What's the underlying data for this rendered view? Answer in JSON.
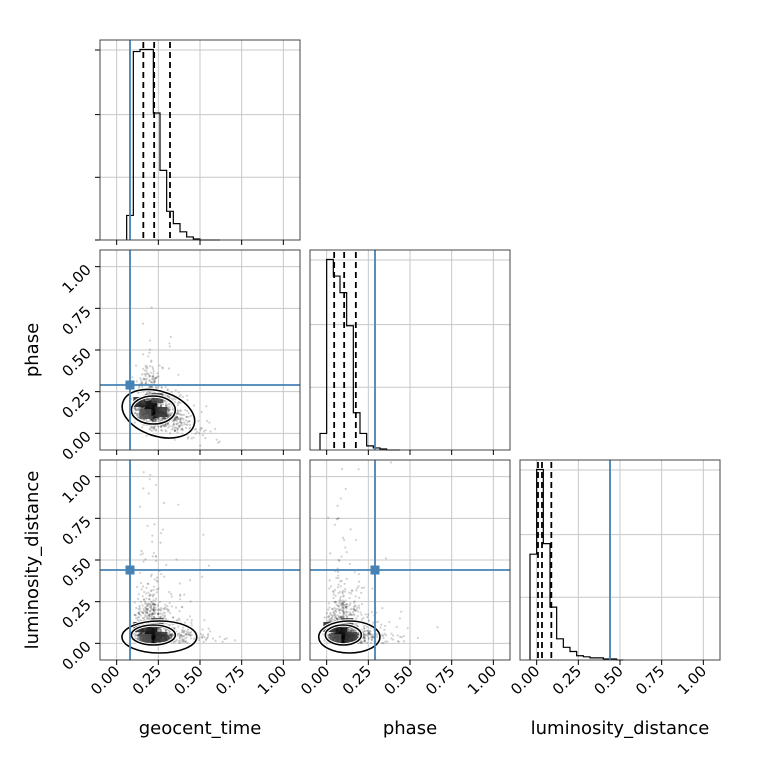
{
  "chart_data": {
    "type": "corner",
    "parameters": [
      "geocent_time",
      "phase",
      "luminosity_distance"
    ],
    "axis_labels": {
      "x": [
        "geocent_time",
        "phase",
        "luminosity_distance"
      ],
      "y": [
        "",
        "phase",
        "luminosity_distance"
      ]
    },
    "axis_range": [
      -0.1,
      1.1
    ],
    "tick_values": [
      0.0,
      0.25,
      0.5,
      0.75,
      1.0
    ],
    "tick_labels": [
      "0.00",
      "0.25",
      "0.50",
      "0.75",
      "1.00"
    ],
    "grid": true,
    "truths": {
      "geocent_time": 0.08,
      "phase": 0.29,
      "luminosity_distance": 0.44
    },
    "truth_color": "#4682b4",
    "quantiles": {
      "geocent_time": [
        0.16,
        0.225,
        0.32
      ],
      "phase": [
        0.045,
        0.105,
        0.175
      ],
      "luminosity_distance": [
        0.008,
        0.032,
        0.088
      ]
    },
    "histograms": {
      "geocent_time": {
        "bin_edges": [
          0.06,
          0.1,
          0.14,
          0.18,
          0.22,
          0.26,
          0.3,
          0.34,
          0.38,
          0.42,
          0.46,
          0.5,
          0.54,
          0.58,
          0.62
        ],
        "counts": [
          0.12,
          0.92,
          0.93,
          0.93,
          0.62,
          0.34,
          0.14,
          0.08,
          0.04,
          0.015,
          0.005,
          0,
          0,
          0
        ]
      },
      "phase": {
        "bin_edges": [
          -0.04,
          0.0,
          0.04,
          0.08,
          0.12,
          0.16,
          0.2,
          0.24,
          0.28,
          0.32,
          0.36,
          0.4,
          0.44
        ],
        "counts": [
          0.08,
          0.92,
          0.84,
          0.76,
          0.6,
          0.18,
          0.08,
          0.02,
          0.01,
          0.005,
          0,
          0
        ]
      },
      "luminosity_distance": {
        "bin_edges": [
          -0.04,
          0.0,
          0.04,
          0.08,
          0.12,
          0.16,
          0.2,
          0.24,
          0.28,
          0.32,
          0.36,
          0.4,
          0.44,
          0.48,
          0.52
        ],
        "counts": [
          0.5,
          0.9,
          0.55,
          0.25,
          0.1,
          0.06,
          0.04,
          0.02,
          0.015,
          0.01,
          0.01,
          0.005,
          0.005,
          0
        ]
      }
    },
    "scatter_centers": {
      "phase_vs_geocent_time": [
        0.22,
        0.14
      ],
      "luminosity_distance_vs_geocent_time": [
        0.22,
        0.05
      ],
      "luminosity_distance_vs_phase": [
        0.1,
        0.05
      ]
    }
  }
}
